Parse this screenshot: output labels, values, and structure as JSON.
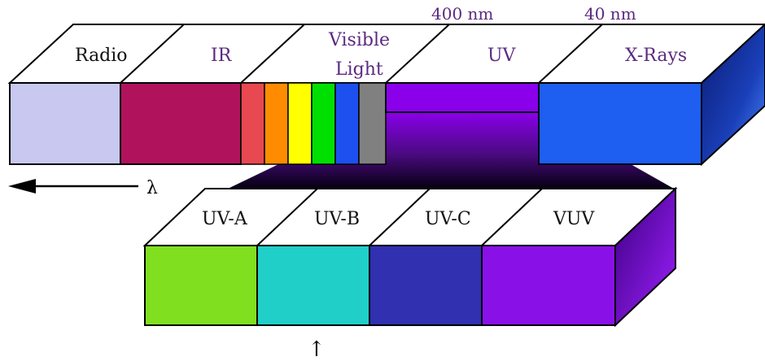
{
  "spectrum": {
    "bands": [
      {
        "label": "Radio",
        "color": "#c8c8f0"
      },
      {
        "label": "IR",
        "color": "#b0125c"
      },
      {
        "label_line1": "Visible",
        "label_line2": "Light",
        "stripes": [
          "#e84850",
          "#ff8c00",
          "#ffff00",
          "#00e000",
          "#1e50f0",
          "#808080"
        ]
      },
      {
        "label": "UV",
        "color": "#8a00ea"
      },
      {
        "label": "X-Rays",
        "color": "#1e5ef0"
      }
    ],
    "top_face_color": "#ffffff",
    "end_face_color": "#1a3fb8"
  },
  "wavelength_markers": [
    "400 nm",
    "40 nm"
  ],
  "direction": {
    "symbol": "λ"
  },
  "uv_bands": [
    {
      "label": "UV-A",
      "color": "#80e020"
    },
    {
      "label": "UV-B",
      "color": "#20d0c8"
    },
    {
      "label": "UV-C",
      "color": "#3030b0"
    },
    {
      "label": "VUV",
      "color": "#8a10e8"
    }
  ],
  "uv_end_face_color": "#6a08c0",
  "up_arrow_symbol": "↑"
}
